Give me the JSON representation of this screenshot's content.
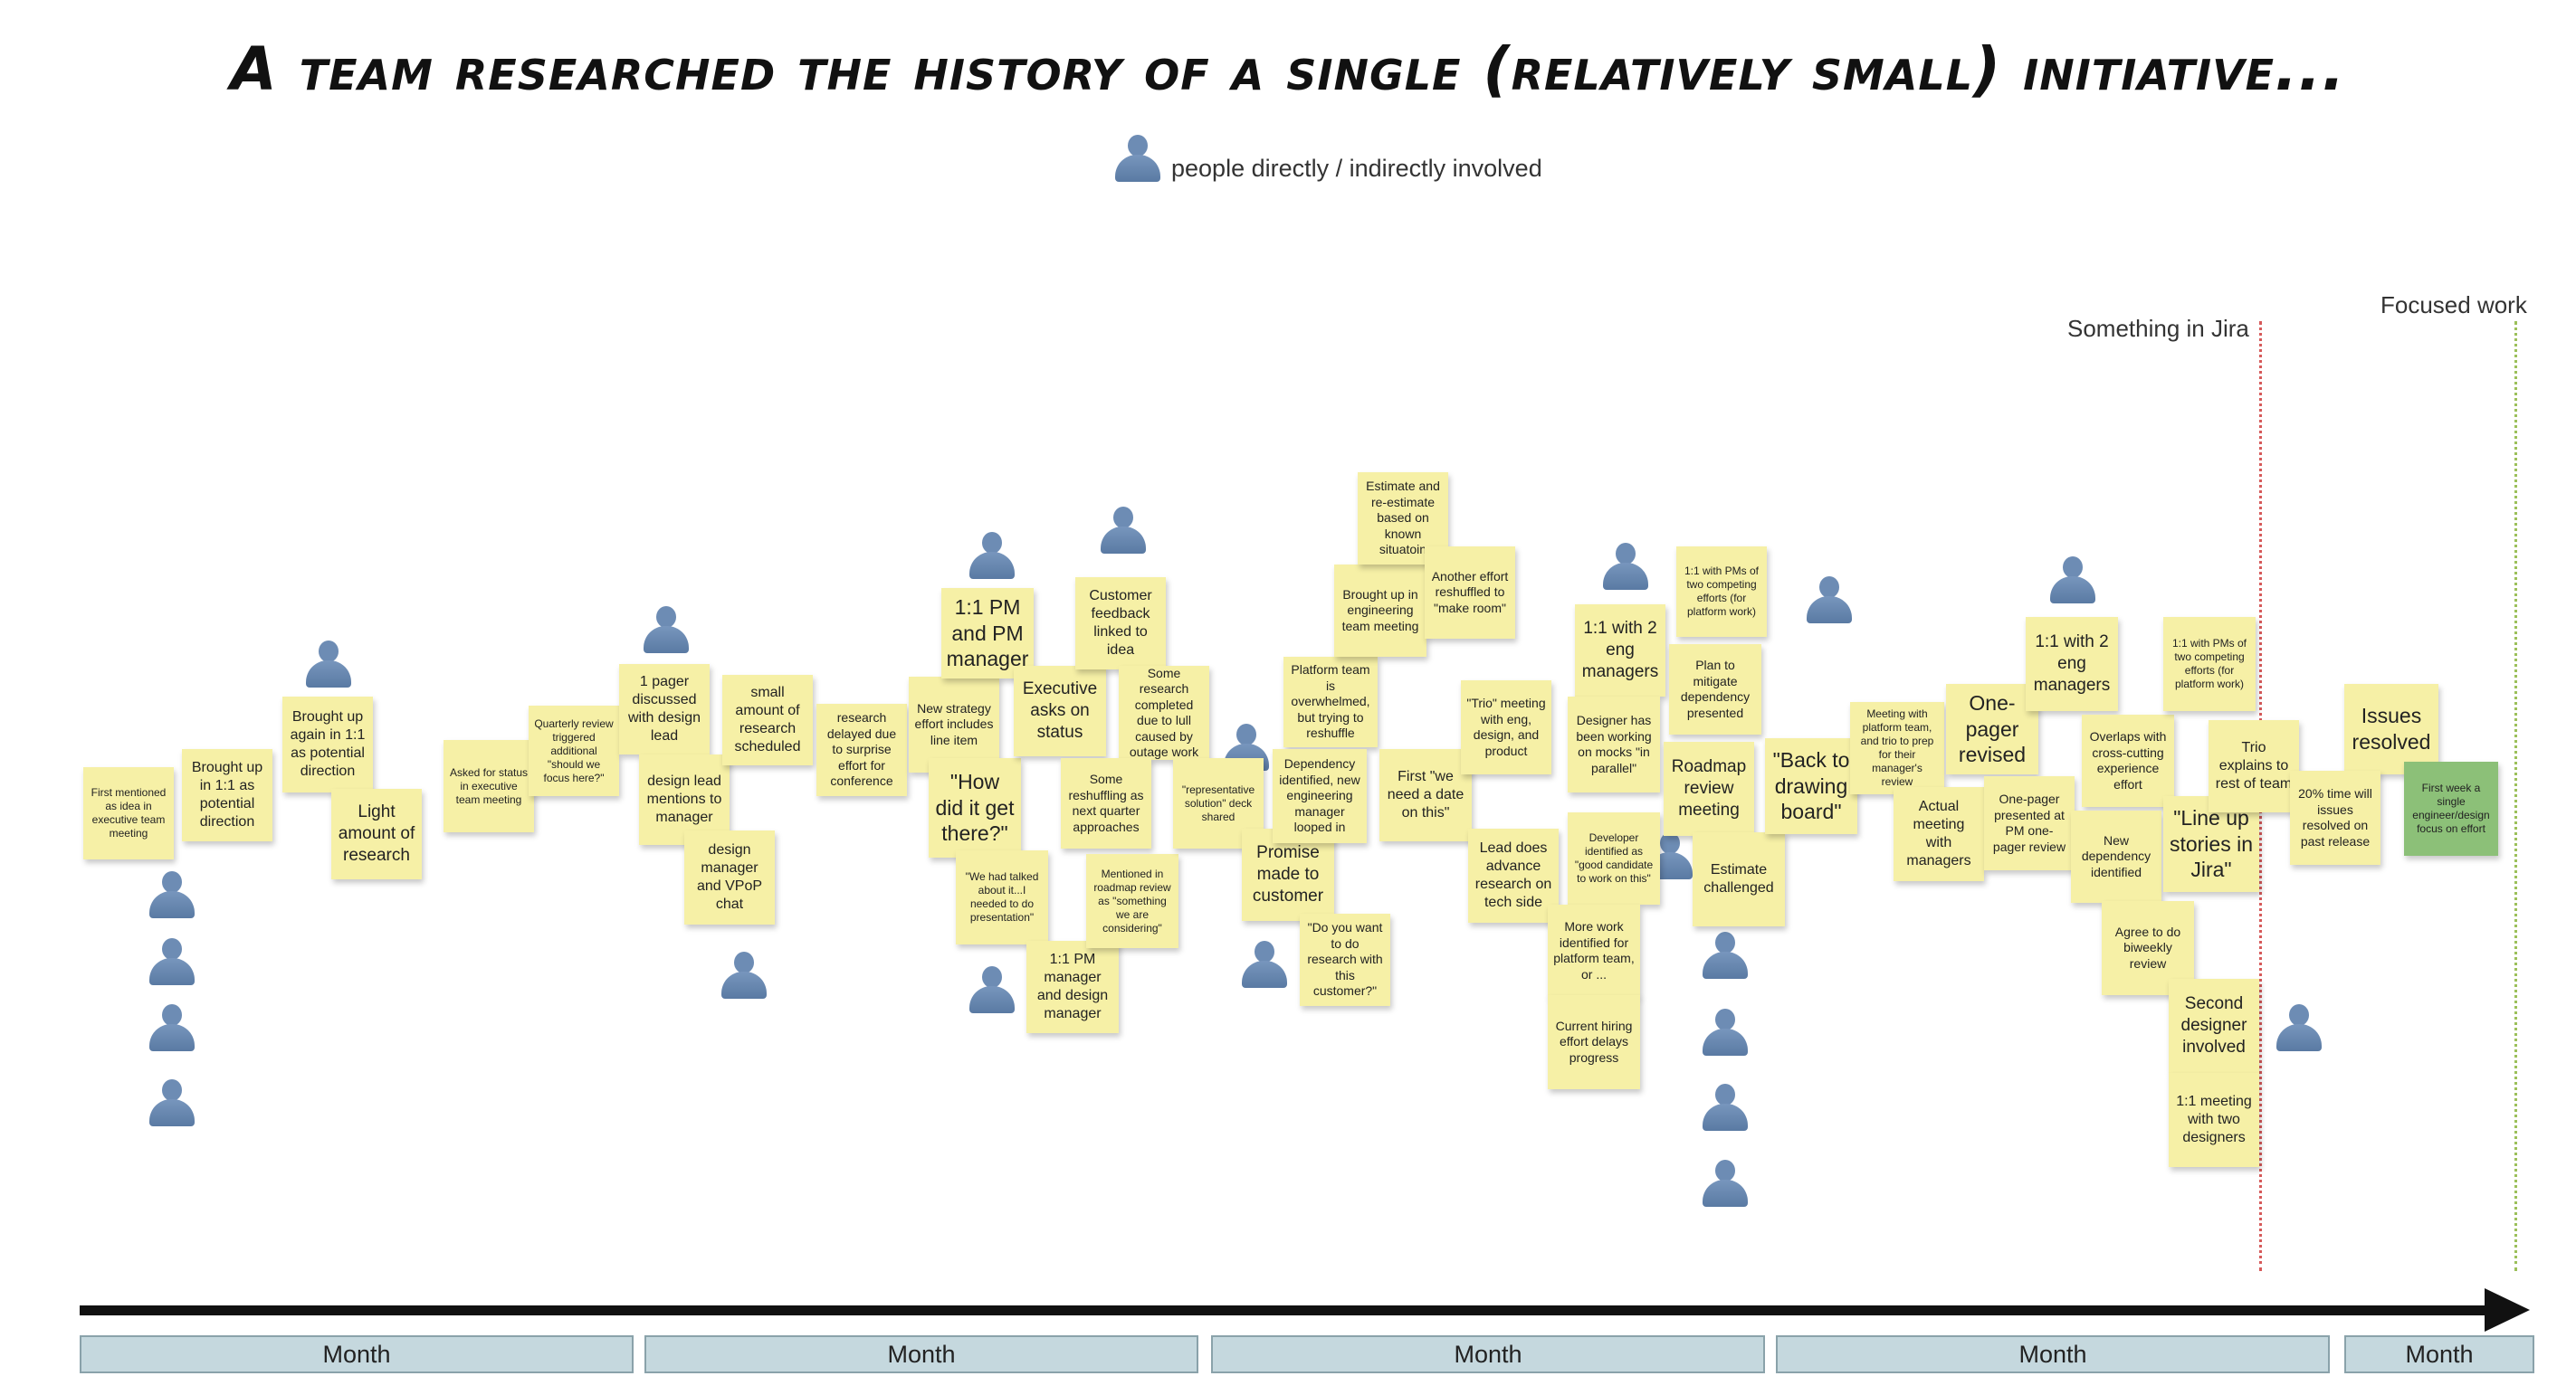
{
  "title": "A team researched the history of a single (relatively small) initiative...",
  "legend": {
    "label": "people directly / indirectly involved",
    "icon": "person-icon"
  },
  "markers": [
    {
      "label": "Something in Jira",
      "color": "#d65a5a"
    },
    {
      "label": "Focused work",
      "color": "#9cc05a"
    }
  ],
  "timeline": {
    "months": [
      "Month",
      "Month",
      "Month",
      "Month",
      "Month"
    ]
  },
  "notes": [
    "First mentioned as idea in executive team meeting",
    "Brought up in 1:1 as potential direction",
    "Brought up again in 1:1 as potential direction",
    "Light amount of research",
    "Asked for status in executive team meeting",
    "Quarterly review triggered additional \"should we focus here?\"",
    "1 pager discussed with design lead",
    "design lead mentions to manager",
    "design manager and VPoP chat",
    "small amount of research scheduled",
    "research delayed due to surprise effort for conference",
    "New strategy effort includes line item",
    "1:1 PM and PM manager",
    "\"How did it get there?\"",
    "\"We had talked about it...I needed to do presentation\"",
    "Executive asks on status",
    "1:1 PM manager and design manager",
    "Customer feedback linked to idea",
    "Some research completed due to lull caused by outage work",
    "Some reshuffling as next quarter approaches",
    "Mentioned in roadmap review as \"something we are considering\"",
    "\"representative solution\" deck shared",
    "Promise made to customer",
    "\"Do you want to do research with this customer?\"",
    "Platform team is overwhelmed, but trying to reshuffle",
    "Dependency identified, new engineering manager looped in",
    "Brought up in engineering team meeting",
    "Estimate and re-estimate based on known situatoin",
    "Another effort reshuffled to \"make room\"",
    "First \"we need a date on this\"",
    "\"Trio\" meeting with eng, design, and product",
    "Lead does advance research on tech side",
    "1:1 with 2 eng managers",
    "Designer has been working on mocks \"in parallel\"",
    "Developer identified as \"good candidate to work on this\"",
    "More work identified for platform team, or ...",
    "Current hiring effort delays progress",
    "1:1 with PMs of two competing efforts (for platform work)",
    "Plan to mitigate dependency presented",
    "Roadmap review meeting",
    "Estimate challenged",
    "\"Back to drawing board\"",
    "Meeting with platform team, and trio to prep for their manager's review",
    "Actual meeting with managers",
    "One-pager revised",
    "One-pager presented at PM one-pager review",
    "1:1 with 2 eng managers",
    "Overlaps with cross-cutting experience effort",
    "New dependency identified",
    "Agree to do biweekly review",
    "1:1 with PMs of two competing efforts (for platform work)",
    "\"Line up stories in Jira\"",
    "Trio explains to rest of team",
    "Second designer involved",
    "1:1 meeting with two designers",
    "Issues resolved",
    "20% time will issues resolved on past release",
    "First week a single engineer/design focus on effort"
  ]
}
